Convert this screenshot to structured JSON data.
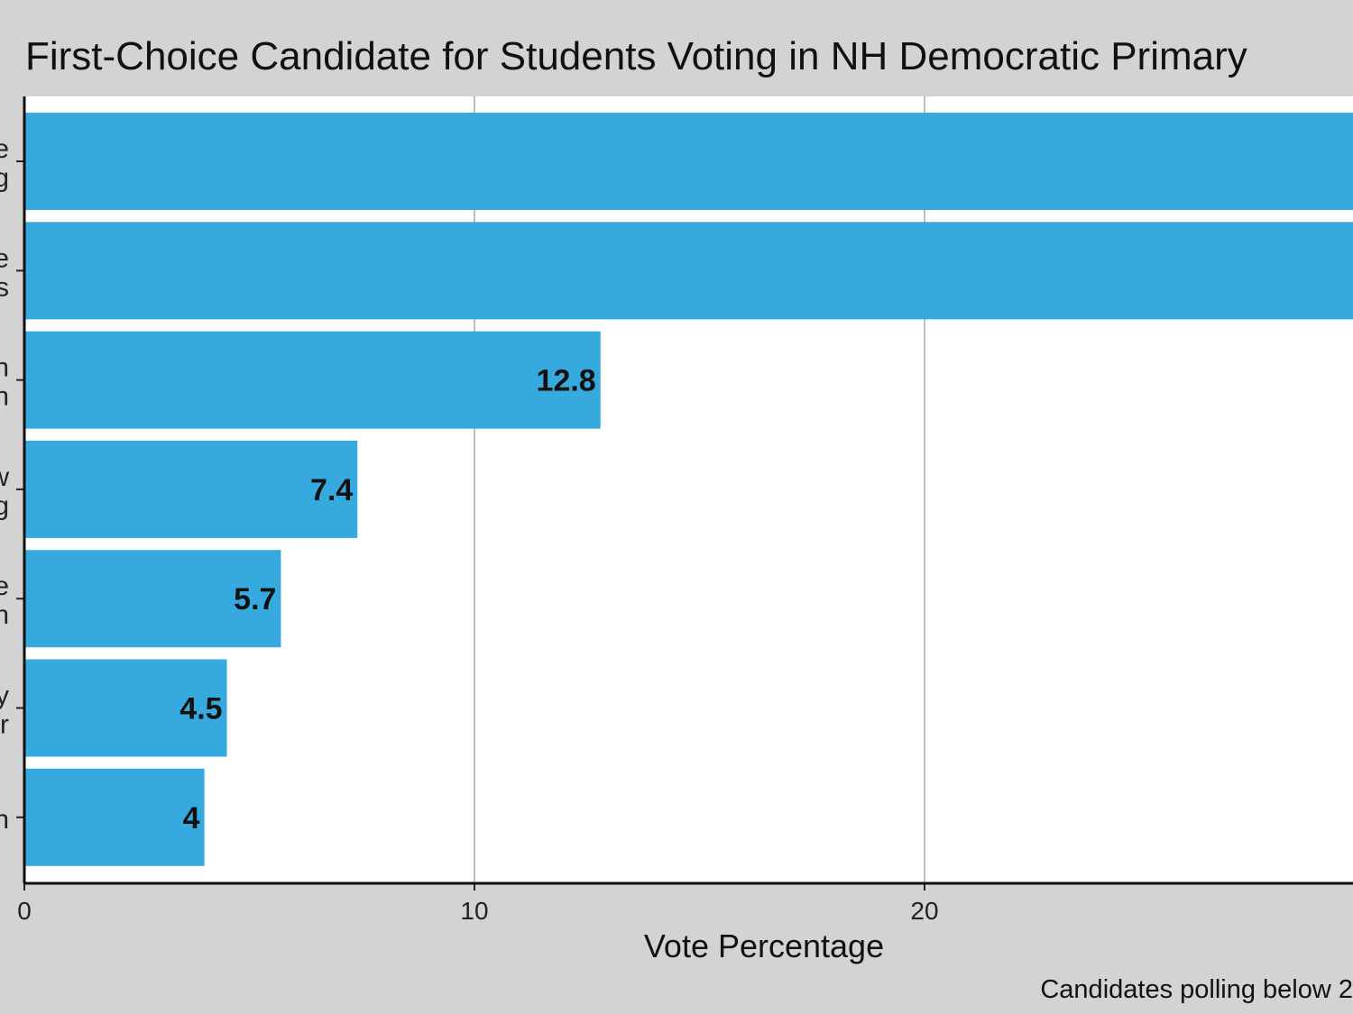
{
  "chart_data": {
    "type": "bar",
    "orientation": "horizontal",
    "title": "First-Choice Candidate for Students Voting in NH Democratic Primary",
    "xlabel": "Vote Percentage",
    "ylabel": "",
    "caption": "Candidates polling below 2",
    "categories": [
      [
        "e",
        "g"
      ],
      [
        "e",
        "s"
      ],
      [
        "n",
        "n"
      ],
      [
        "w",
        "g"
      ],
      [
        "e",
        "n"
      ],
      [
        "y",
        "r"
      ],
      [
        "n"
      ]
    ],
    "values": [
      null,
      null,
      12.8,
      7.4,
      5.7,
      4.5,
      4
    ],
    "value_labels": [
      "",
      "",
      "12.8",
      "7.4",
      "5.7",
      "4.5",
      "4"
    ],
    "xlim": [
      0,
      29.5
    ],
    "xticks": [
      0,
      10,
      20
    ],
    "xtick_labels": [
      "0",
      "10",
      "20"
    ],
    "grid": "vertical major",
    "legend": "none",
    "note": "",
    "colors": {
      "bar": "#36A9DF",
      "background": "#D3D3D3",
      "panel": "#FFFFFF",
      "grid": "#BDBDBD"
    }
  }
}
